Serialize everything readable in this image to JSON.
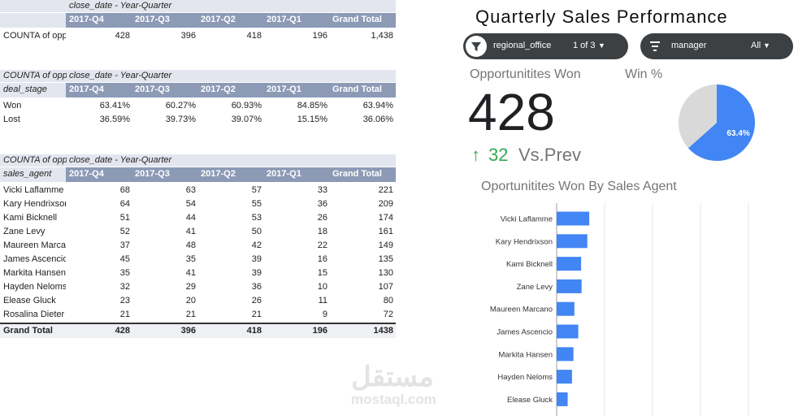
{
  "tables": [
    {
      "column_group": "close_date - Year-Quarter",
      "columns": [
        "2017-Q4",
        "2017-Q3",
        "2017-Q2",
        "2017-Q1",
        "Grand Total"
      ],
      "rows": [
        [
          "COUNTA of opp",
          428,
          396,
          418,
          196,
          "1,438"
        ]
      ]
    },
    {
      "corner": "COUNTA of opp",
      "column_group": "close_date - Year-Quarter",
      "row_header": "deal_stage",
      "columns": [
        "2017-Q4",
        "2017-Q3",
        "2017-Q2",
        "2017-Q1",
        "Grand Total"
      ],
      "rows": [
        [
          "Won",
          "63.41%",
          "60.27%",
          "60.93%",
          "84.85%",
          "63.94%"
        ],
        [
          "Lost",
          "36.59%",
          "39.73%",
          "39.07%",
          "15.15%",
          "36.06%"
        ]
      ]
    },
    {
      "corner": "COUNTA of opp",
      "column_group": "close_date - Year-Quarter",
      "row_header": "sales_agent",
      "columns": [
        "2017-Q4",
        "2017-Q3",
        "2017-Q2",
        "2017-Q1",
        "Grand Total"
      ],
      "rows": [
        [
          "Vicki Laflamme",
          68,
          63,
          57,
          33,
          221
        ],
        [
          "Kary Hendrixson",
          64,
          54,
          55,
          36,
          209
        ],
        [
          "Kami Bicknell",
          51,
          44,
          53,
          26,
          174
        ],
        [
          "Zane Levy",
          52,
          41,
          50,
          18,
          161
        ],
        [
          "Maureen Marcano",
          37,
          48,
          42,
          22,
          149
        ],
        [
          "James Ascencio",
          45,
          35,
          39,
          16,
          135
        ],
        [
          "Markita Hansen",
          35,
          41,
          39,
          15,
          130
        ],
        [
          "Hayden Neloms",
          32,
          29,
          36,
          10,
          107
        ],
        [
          "Elease Gluck",
          23,
          20,
          26,
          11,
          80
        ],
        [
          "Rosalina Dieter",
          21,
          21,
          21,
          9,
          72
        ]
      ],
      "total": [
        "Grand Total",
        428,
        396,
        418,
        196,
        1438
      ]
    }
  ],
  "dashboard": {
    "title": "Quarterly Sales Performance",
    "filters": [
      {
        "field": "regional_office",
        "selection": "1 of 3"
      },
      {
        "field": "manager",
        "selection": "All"
      }
    ],
    "scorecard": {
      "label": "Opportunitites Won",
      "value": 428,
      "delta": 32,
      "comparison": "Vs.Prev"
    }
  },
  "watermark": {
    "arabic": "مستقل",
    "latin": "mostaql.com"
  },
  "chart_data": [
    {
      "type": "pie",
      "title": "Win %",
      "values": [
        63.4,
        36.6
      ],
      "value_labels": [
        "63.4%",
        null
      ],
      "colors": [
        "#4285f4",
        "#d9d9d9"
      ]
    },
    {
      "type": "bar",
      "orientation": "horizontal",
      "title": "Oportunitites Won By Sales Agent",
      "categories": [
        "Vicki Laflamme",
        "Kary Hendrixson",
        "Kami Bicknell",
        "Zane Levy",
        "Maureen Marcano",
        "James Ascencio",
        "Markita Hansen",
        "Hayden Neloms",
        "Elease Gluck"
      ],
      "values": [
        68,
        64,
        51,
        52,
        37,
        45,
        35,
        32,
        23
      ],
      "color": "#4285f4",
      "xlim": [
        0,
        500
      ],
      "xticks": [
        0,
        100,
        200,
        300,
        400
      ],
      "grid": true
    }
  ]
}
